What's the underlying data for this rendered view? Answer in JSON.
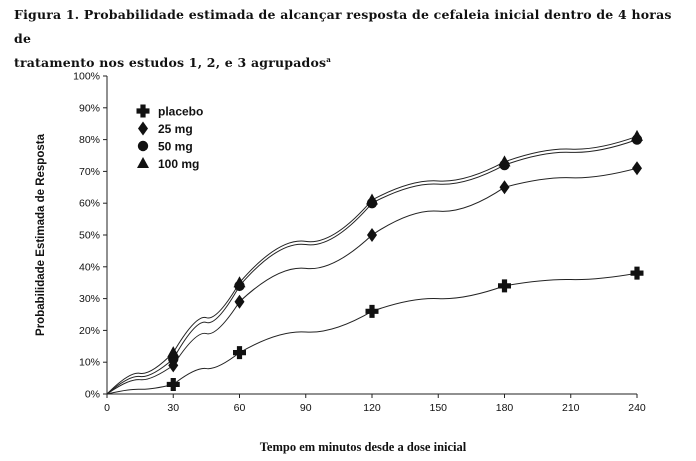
{
  "title": {
    "line1": "Figura 1. Probabilidade estimada de alcançar resposta de cefaleia inicial dentro de 4 horas de",
    "line2": "tratamento nos estudos 1, 2, e 3 agrupados",
    "footnote_mark": "a"
  },
  "chart_data": {
    "type": "line",
    "xlabel": "Tempo em minutos desde a dose inicial",
    "ylabel": "Probabilidade Estimada de Resposta",
    "xlim": [
      0,
      240
    ],
    "ylim": [
      0,
      100
    ],
    "x_ticks": [
      0,
      30,
      60,
      90,
      120,
      150,
      180,
      210,
      240
    ],
    "y_ticks": [
      "0%",
      "10%",
      "20%",
      "30%",
      "40%",
      "50%",
      "60%",
      "70%",
      "80%",
      "90%",
      "100%"
    ],
    "legend_position": "top-left",
    "grid": false,
    "series": [
      {
        "name": "placebo",
        "marker": "cross",
        "x": [
          0,
          30,
          60,
          120,
          180,
          240
        ],
        "values": [
          0,
          3,
          13,
          26,
          34,
          38
        ]
      },
      {
        "name": "25 mg",
        "marker": "diamond",
        "x": [
          0,
          30,
          60,
          120,
          180,
          240
        ],
        "values": [
          0,
          9,
          29,
          50,
          65,
          71
        ]
      },
      {
        "name": "50 mg",
        "marker": "circle",
        "x": [
          0,
          30,
          60,
          120,
          180,
          240
        ],
        "values": [
          0,
          11,
          34,
          60,
          72,
          80
        ]
      },
      {
        "name": "100 mg",
        "marker": "triangle",
        "x": [
          0,
          30,
          60,
          120,
          180,
          240
        ],
        "values": [
          0,
          13,
          35,
          61,
          73,
          81
        ]
      }
    ]
  }
}
